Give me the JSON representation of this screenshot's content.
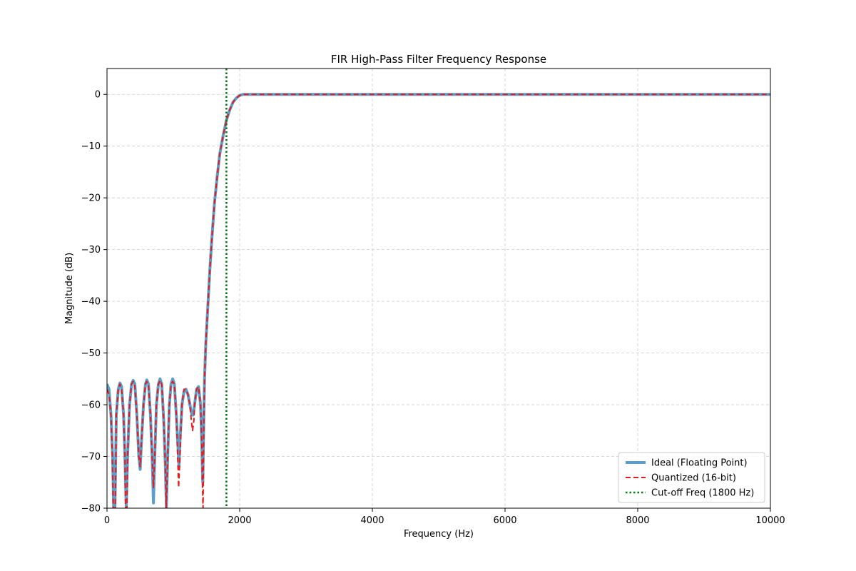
{
  "chart_data": {
    "type": "line",
    "title": "FIR High-Pass Filter Frequency Response",
    "xlabel": "Frequency (Hz)",
    "ylabel": "Magnitude (dB)",
    "xlim": [
      0,
      10000
    ],
    "ylim": [
      -80,
      5
    ],
    "x_ticks": [
      0,
      2000,
      4000,
      6000,
      8000,
      10000
    ],
    "x_tick_labels": [
      "0",
      "2000",
      "4000",
      "6000",
      "8000",
      "10000"
    ],
    "y_ticks": [
      0,
      -10,
      -20,
      -30,
      -40,
      -50,
      -60,
      -70,
      -80
    ],
    "y_tick_labels": [
      "0",
      "−10",
      "−20",
      "−30",
      "−40",
      "−50",
      "−60",
      "−70",
      "−80"
    ],
    "grid": true,
    "legend_position": "bottom-right",
    "series": [
      {
        "name": "Ideal (Floating Point)",
        "color": "#5b9ec9",
        "style": "solid",
        "points": [
          [
            0,
            -56
          ],
          [
            30,
            -57
          ],
          [
            60,
            -62
          ],
          [
            85,
            -70
          ],
          [
            100,
            -80
          ],
          [
            120,
            -80
          ],
          [
            140,
            -62
          ],
          [
            170,
            -57
          ],
          [
            195,
            -55.8
          ],
          [
            220,
            -56.5
          ],
          [
            250,
            -62
          ],
          [
            270,
            -70
          ],
          [
            290,
            -80
          ],
          [
            310,
            -70
          ],
          [
            340,
            -60
          ],
          [
            370,
            -56
          ],
          [
            395,
            -55.3
          ],
          [
            420,
            -56
          ],
          [
            450,
            -62
          ],
          [
            480,
            -70
          ],
          [
            500,
            -72.5
          ],
          [
            520,
            -67
          ],
          [
            550,
            -60
          ],
          [
            580,
            -56
          ],
          [
            600,
            -55.2
          ],
          [
            625,
            -56
          ],
          [
            655,
            -62
          ],
          [
            680,
            -70
          ],
          [
            700,
            -79
          ],
          [
            720,
            -70
          ],
          [
            745,
            -60
          ],
          [
            775,
            -56
          ],
          [
            800,
            -55
          ],
          [
            825,
            -56
          ],
          [
            855,
            -63
          ],
          [
            880,
            -72
          ],
          [
            895,
            -80
          ],
          [
            915,
            -70
          ],
          [
            940,
            -60
          ],
          [
            965,
            -56
          ],
          [
            990,
            -55
          ],
          [
            1015,
            -56
          ],
          [
            1045,
            -62
          ],
          [
            1070,
            -68
          ],
          [
            1085,
            -72
          ],
          [
            1100,
            -67
          ],
          [
            1130,
            -60
          ],
          [
            1160,
            -57.5
          ],
          [
            1190,
            -57
          ],
          [
            1220,
            -58
          ],
          [
            1250,
            -60
          ],
          [
            1280,
            -62
          ],
          [
            1300,
            -62
          ],
          [
            1320,
            -60
          ],
          [
            1350,
            -57
          ],
          [
            1380,
            -56.5
          ],
          [
            1410,
            -60
          ],
          [
            1430,
            -68
          ],
          [
            1440,
            -74
          ],
          [
            1445,
            -75
          ],
          [
            1450,
            -70
          ],
          [
            1460,
            -62
          ],
          [
            1470,
            -55
          ],
          [
            1490,
            -48
          ],
          [
            1520,
            -41
          ],
          [
            1550,
            -34
          ],
          [
            1580,
            -28
          ],
          [
            1620,
            -21
          ],
          [
            1660,
            -16
          ],
          [
            1700,
            -11.5
          ],
          [
            1750,
            -8
          ],
          [
            1800,
            -5
          ],
          [
            1850,
            -3
          ],
          [
            1900,
            -1.5
          ],
          [
            1950,
            -0.7
          ],
          [
            2000,
            -0.2
          ],
          [
            2050,
            0
          ],
          [
            2100,
            0
          ],
          [
            2500,
            0
          ],
          [
            3000,
            0
          ],
          [
            4000,
            0
          ],
          [
            6000,
            0
          ],
          [
            8000,
            0
          ],
          [
            10000,
            0
          ]
        ]
      },
      {
        "name": "Quantized (16-bit)",
        "color": "#e8191c",
        "style": "dashed",
        "points": [
          [
            0,
            -57
          ],
          [
            30,
            -58
          ],
          [
            60,
            -62
          ],
          [
            80,
            -70
          ],
          [
            95,
            -80
          ],
          [
            125,
            -80
          ],
          [
            140,
            -62
          ],
          [
            170,
            -57
          ],
          [
            195,
            -56
          ],
          [
            220,
            -57
          ],
          [
            250,
            -62
          ],
          [
            270,
            -70
          ],
          [
            280,
            -80
          ],
          [
            300,
            -80
          ],
          [
            310,
            -70
          ],
          [
            340,
            -60
          ],
          [
            370,
            -56
          ],
          [
            395,
            -55.5
          ],
          [
            420,
            -56.5
          ],
          [
            450,
            -62
          ],
          [
            480,
            -70
          ],
          [
            500,
            -72
          ],
          [
            520,
            -67
          ],
          [
            550,
            -60
          ],
          [
            580,
            -56
          ],
          [
            600,
            -55.5
          ],
          [
            625,
            -56
          ],
          [
            655,
            -62
          ],
          [
            680,
            -70
          ],
          [
            700,
            -76
          ],
          [
            720,
            -70
          ],
          [
            745,
            -60
          ],
          [
            775,
            -56
          ],
          [
            800,
            -55.3
          ],
          [
            825,
            -56
          ],
          [
            855,
            -63
          ],
          [
            880,
            -72
          ],
          [
            893,
            -80
          ],
          [
            915,
            -70
          ],
          [
            940,
            -60
          ],
          [
            965,
            -56
          ],
          [
            990,
            -55.5
          ],
          [
            1015,
            -56
          ],
          [
            1045,
            -62
          ],
          [
            1065,
            -70
          ],
          [
            1080,
            -76
          ],
          [
            1100,
            -70
          ],
          [
            1130,
            -60
          ],
          [
            1160,
            -57
          ],
          [
            1190,
            -57
          ],
          [
            1220,
            -58
          ],
          [
            1250,
            -60
          ],
          [
            1270,
            -63
          ],
          [
            1290,
            -65
          ],
          [
            1310,
            -63
          ],
          [
            1320,
            -60
          ],
          [
            1350,
            -57
          ],
          [
            1380,
            -56.5
          ],
          [
            1410,
            -60
          ],
          [
            1430,
            -68
          ],
          [
            1440,
            -76
          ],
          [
            1448,
            -80
          ],
          [
            1455,
            -70
          ],
          [
            1462,
            -62
          ],
          [
            1470,
            -55
          ],
          [
            1490,
            -48
          ],
          [
            1520,
            -41
          ],
          [
            1550,
            -34
          ],
          [
            1580,
            -28
          ],
          [
            1620,
            -21
          ],
          [
            1660,
            -16
          ],
          [
            1700,
            -11.5
          ],
          [
            1750,
            -8
          ],
          [
            1800,
            -5
          ],
          [
            1850,
            -3
          ],
          [
            1900,
            -1.5
          ],
          [
            1950,
            -0.7
          ],
          [
            2000,
            -0.2
          ],
          [
            2050,
            0
          ],
          [
            2100,
            0
          ],
          [
            2500,
            0
          ],
          [
            3000,
            0
          ],
          [
            4000,
            0
          ],
          [
            6000,
            0
          ],
          [
            8000,
            0
          ],
          [
            10000,
            0
          ]
        ]
      },
      {
        "name": "Cut-off Freq (1800 Hz)",
        "color": "#0a7a16",
        "style": "dotted",
        "vertical_line_x": 1800
      }
    ]
  }
}
